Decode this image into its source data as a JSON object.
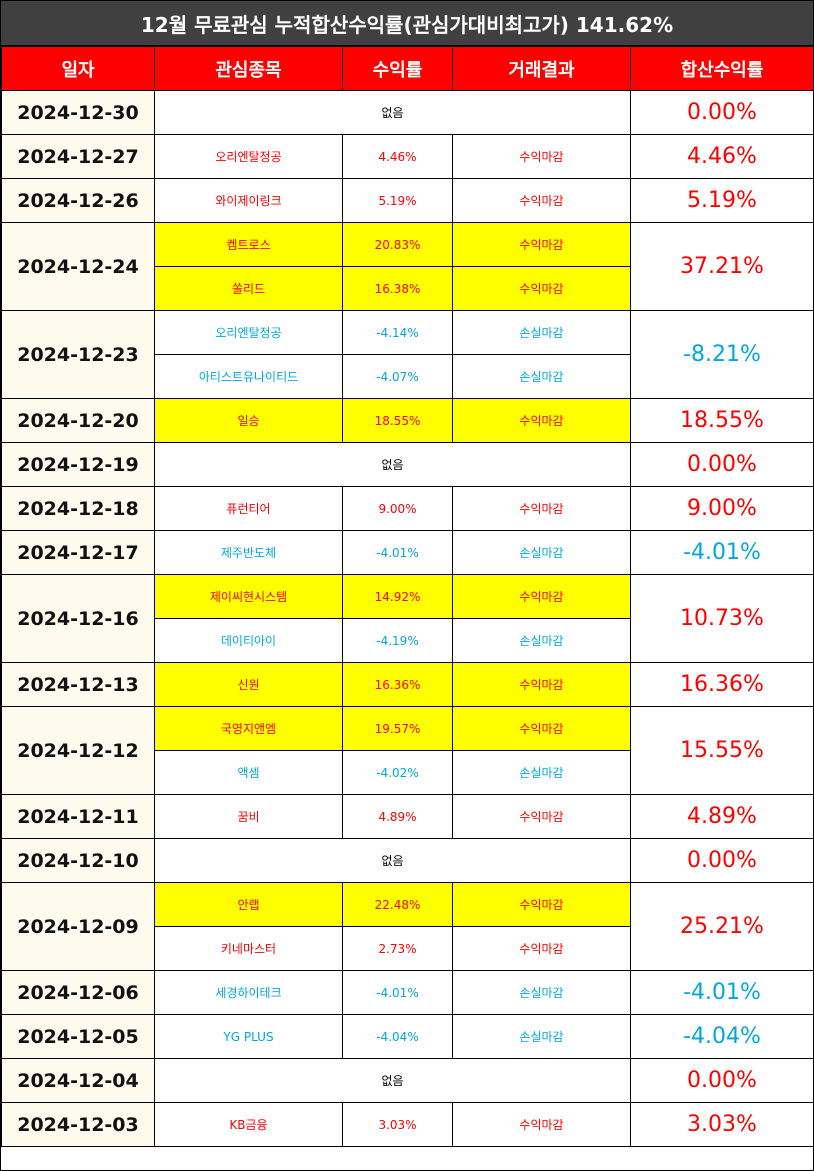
{
  "title": "12월 무료관심 누적합산수익률(관심가대비최고가) 141.62%",
  "headers": [
    "일자",
    "관심종목",
    "수익률",
    "거래결과",
    "합산수익률"
  ],
  "days": [
    {
      "date": "2024-12-30",
      "total": "0.00%",
      "total_sign": "pos",
      "none_label": "없음",
      "items": []
    },
    {
      "date": "2024-12-27",
      "total": "4.46%",
      "total_sign": "pos",
      "items": [
        {
          "name": "오리엔탈정공",
          "ret": "4.46%",
          "result": "수익마감",
          "sign": "pos",
          "highlight": false
        }
      ]
    },
    {
      "date": "2024-12-26",
      "total": "5.19%",
      "total_sign": "pos",
      "items": [
        {
          "name": "와이제이링크",
          "ret": "5.19%",
          "result": "수익마감",
          "sign": "pos",
          "highlight": false
        }
      ]
    },
    {
      "date": "2024-12-24",
      "total": "37.21%",
      "total_sign": "pos",
      "items": [
        {
          "name": "켐트로스",
          "ret": "20.83%",
          "result": "수익마감",
          "sign": "pos",
          "highlight": true
        },
        {
          "name": "쏠리드",
          "ret": "16.38%",
          "result": "수익마감",
          "sign": "pos",
          "highlight": true
        }
      ]
    },
    {
      "date": "2024-12-23",
      "total": "-8.21%",
      "total_sign": "neg",
      "items": [
        {
          "name": "오리엔탈정공",
          "ret": "-4.14%",
          "result": "손실마감",
          "sign": "neg",
          "highlight": false
        },
        {
          "name": "아티스트유나이티드",
          "ret": "-4.07%",
          "result": "손실마감",
          "sign": "neg",
          "highlight": false
        }
      ]
    },
    {
      "date": "2024-12-20",
      "total": "18.55%",
      "total_sign": "pos",
      "items": [
        {
          "name": "일승",
          "ret": "18.55%",
          "result": "수익마감",
          "sign": "pos",
          "highlight": true
        }
      ]
    },
    {
      "date": "2024-12-19",
      "total": "0.00%",
      "total_sign": "pos",
      "none_label": "없음",
      "items": []
    },
    {
      "date": "2024-12-18",
      "total": "9.00%",
      "total_sign": "pos",
      "items": [
        {
          "name": "퓨런티어",
          "ret": "9.00%",
          "result": "수익마감",
          "sign": "pos",
          "highlight": false
        }
      ]
    },
    {
      "date": "2024-12-17",
      "total": "-4.01%",
      "total_sign": "neg",
      "items": [
        {
          "name": "제주반도체",
          "ret": "-4.01%",
          "result": "손실마감",
          "sign": "neg",
          "highlight": false
        }
      ]
    },
    {
      "date": "2024-12-16",
      "total": "10.73%",
      "total_sign": "pos",
      "items": [
        {
          "name": "제이씨현시스템",
          "ret": "14.92%",
          "result": "수익마감",
          "sign": "pos",
          "highlight": true
        },
        {
          "name": "데이티아이",
          "ret": "-4.19%",
          "result": "손실마감",
          "sign": "neg",
          "highlight": false
        }
      ]
    },
    {
      "date": "2024-12-13",
      "total": "16.36%",
      "total_sign": "pos",
      "items": [
        {
          "name": "신원",
          "ret": "16.36%",
          "result": "수익마감",
          "sign": "pos",
          "highlight": true
        }
      ]
    },
    {
      "date": "2024-12-12",
      "total": "15.55%",
      "total_sign": "pos",
      "items": [
        {
          "name": "국영지앤엠",
          "ret": "19.57%",
          "result": "수익마감",
          "sign": "pos",
          "highlight": true
        },
        {
          "name": "액셈",
          "ret": "-4.02%",
          "result": "손실마감",
          "sign": "neg",
          "highlight": false
        }
      ]
    },
    {
      "date": "2024-12-11",
      "total": "4.89%",
      "total_sign": "pos",
      "items": [
        {
          "name": "꿈비",
          "ret": "4.89%",
          "result": "수익마감",
          "sign": "pos",
          "highlight": false
        }
      ]
    },
    {
      "date": "2024-12-10",
      "total": "0.00%",
      "total_sign": "pos",
      "none_label": "없음",
      "items": []
    },
    {
      "date": "2024-12-09",
      "total": "25.21%",
      "total_sign": "pos",
      "items": [
        {
          "name": "안랩",
          "ret": "22.48%",
          "result": "수익마감",
          "sign": "pos",
          "highlight": true
        },
        {
          "name": "키네마스터",
          "ret": "2.73%",
          "result": "수익마감",
          "sign": "pos",
          "highlight": false
        }
      ]
    },
    {
      "date": "2024-12-06",
      "total": "-4.01%",
      "total_sign": "neg",
      "items": [
        {
          "name": "세경하이테크",
          "ret": "-4.01%",
          "result": "손실마감",
          "sign": "neg",
          "highlight": false
        }
      ]
    },
    {
      "date": "2024-12-05",
      "total": "-4.04%",
      "total_sign": "neg",
      "items": [
        {
          "name": "YG PLUS",
          "ret": "-4.04%",
          "result": "손실마감",
          "sign": "neg",
          "highlight": false
        }
      ]
    },
    {
      "date": "2024-12-04",
      "total": "0.00%",
      "total_sign": "pos",
      "none_label": "없음",
      "items": []
    },
    {
      "date": "2024-12-03",
      "total": "3.03%",
      "total_sign": "pos",
      "items": [
        {
          "name": "KB금융",
          "ret": "3.03%",
          "result": "수익마감",
          "sign": "pos",
          "highlight": false
        }
      ]
    }
  ]
}
